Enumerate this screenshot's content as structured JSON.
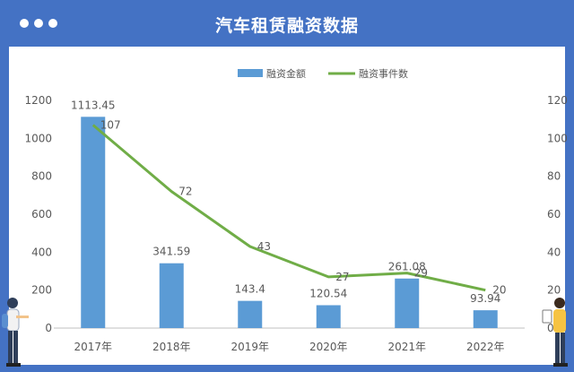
{
  "header": {
    "title": "汽车租赁融资数据"
  },
  "colors": {
    "bar": "#5b9bd5",
    "line": "#70ad47",
    "header": "#4472c4"
  },
  "icons": [
    "window-dots-icon",
    "person-left-figure",
    "person-right-figure"
  ],
  "chart_data": {
    "type": "bar",
    "categories": [
      "2017年",
      "2018年",
      "2019年",
      "2020年",
      "2021年",
      "2022年"
    ],
    "series": [
      {
        "name": "融资金额",
        "type": "bar",
        "axis": "left",
        "values": [
          1113.45,
          341.59,
          143.4,
          120.54,
          261.08,
          93.94
        ],
        "labels": [
          "1113.45",
          "341.59",
          "143.4",
          "120.54",
          "261.08",
          "93.94"
        ]
      },
      {
        "name": "融资事件数",
        "type": "line",
        "axis": "right",
        "values": [
          107,
          72,
          43,
          27,
          29,
          20
        ],
        "labels": [
          "107",
          "72",
          "43",
          "27",
          "29",
          "20"
        ]
      }
    ],
    "y_left": {
      "min": 0,
      "max": 1200,
      "ticks": [
        "0",
        "200",
        "400",
        "600",
        "800",
        "1000",
        "1200"
      ]
    },
    "y_right": {
      "min": 0,
      "max": 120,
      "ticks": [
        "0",
        "20",
        "40",
        "60",
        "80",
        "100",
        "120"
      ]
    },
    "legend": "top-center",
    "grid": false
  }
}
